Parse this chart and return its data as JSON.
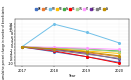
{
  "years": [
    2017,
    2018,
    2019,
    2020
  ],
  "xlabel": "Year",
  "ylabel": "Cumulative percent change in number of beneficiaries",
  "series": [
    {
      "label": "AB",
      "color": "#4472C4",
      "values": [
        0,
        -3.0,
        -6.0,
        -9.5
      ]
    },
    {
      "label": "BC",
      "color": "#ED7D31",
      "values": [
        0,
        -1.5,
        -3.5,
        -6.0
      ]
    },
    {
      "label": "MB",
      "color": "#70C0E8",
      "values": [
        0,
        14.0,
        9.0,
        2.5
      ]
    },
    {
      "label": "NB",
      "color": "#FFC000",
      "values": [
        0,
        -1.0,
        -2.5,
        -4.0
      ]
    },
    {
      "label": "NL",
      "color": "#44AA44",
      "values": [
        0,
        -0.5,
        -1.5,
        -2.5
      ]
    },
    {
      "label": "NS",
      "color": "#FF0000",
      "values": [
        0,
        -2.5,
        -6.0,
        -10.0
      ]
    },
    {
      "label": "ON",
      "color": "#A9D18E",
      "values": [
        0,
        -0.5,
        -1.5,
        -3.0
      ]
    },
    {
      "label": "PE",
      "color": "#FF99FF",
      "values": [
        0,
        -0.2,
        -0.8,
        -1.5
      ]
    },
    {
      "label": "QC",
      "color": "#7030A0",
      "values": [
        0,
        -1.5,
        -4.0,
        -7.5
      ]
    },
    {
      "label": "SK",
      "color": "#808080",
      "values": [
        0,
        -2.0,
        -4.5,
        -7.0
      ]
    },
    {
      "label": "All",
      "color": "#BF8F00",
      "values": [
        0,
        -1.2,
        -3.0,
        -5.5
      ]
    }
  ],
  "ylim": [
    -12,
    17
  ],
  "yticks": [
    -10,
    -8,
    -6,
    -4,
    -2,
    0,
    2,
    4,
    6,
    8,
    10,
    12,
    14
  ],
  "figsize": [
    1.31,
    0.8
  ],
  "dpi": 100,
  "tick_fontsize": 2.5,
  "label_fontsize": 2.5,
  "legend_fontsize": 1.8,
  "line_width": 0.7,
  "marker_size": 1.2
}
